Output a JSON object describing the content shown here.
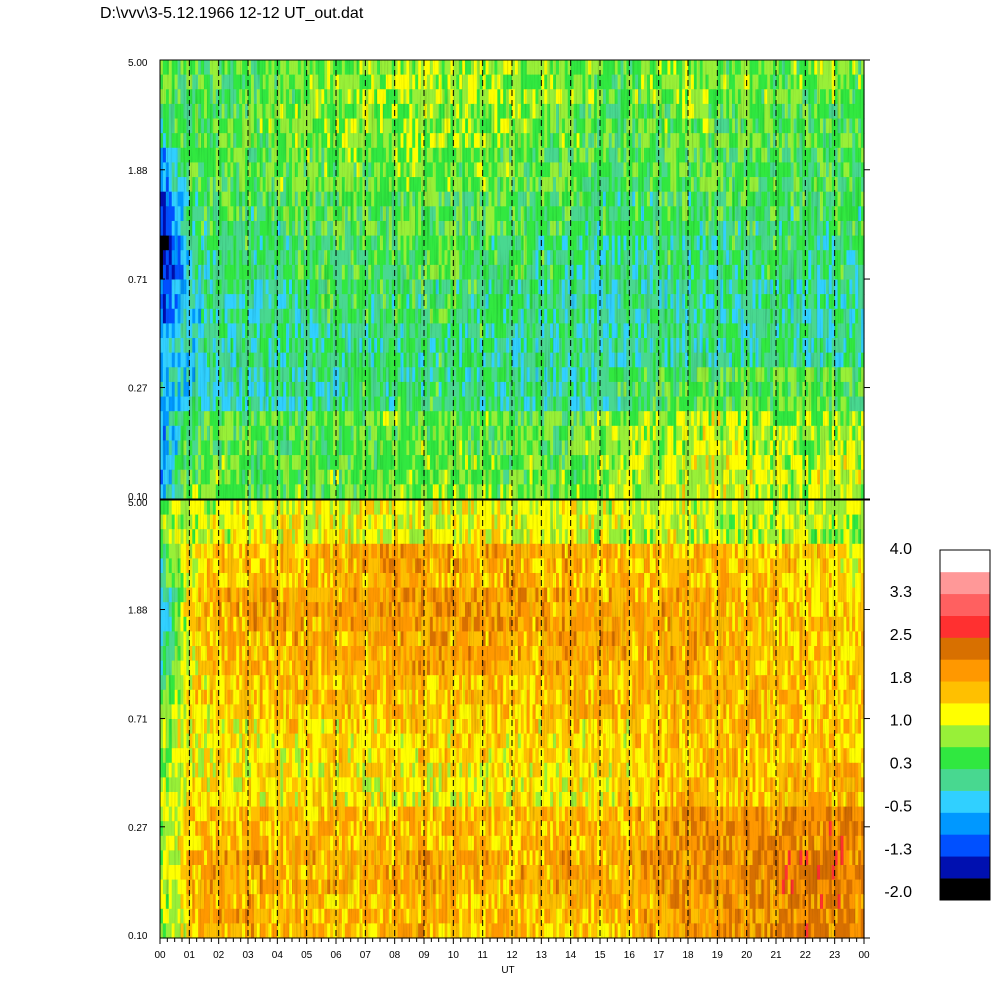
{
  "title": "D:\\vvv\\3-5.12.1966  12-12 UT_out.dat",
  "chart_data": {
    "type": "heatmap",
    "title": "D:\\vvv\\3-5.12.1966  12-12 UT_out.dat",
    "xlabel": "UT",
    "ylabel": "",
    "x_ticks": [
      "00",
      "01",
      "02",
      "03",
      "04",
      "05",
      "06",
      "07",
      "08",
      "09",
      "10",
      "11",
      "12",
      "13",
      "14",
      "15",
      "16",
      "17",
      "18",
      "19",
      "20",
      "21",
      "22",
      "23",
      "00"
    ],
    "xlim": [
      0,
      24
    ],
    "y_scale": "log",
    "y_ticks": [
      "5.00",
      "1.88",
      "0.71",
      "0.27",
      "0.10"
    ],
    "ylim": [
      0.1,
      5.0
    ],
    "grid": "vertical dashed lines at each hour",
    "panels": [
      {
        "name": "upper",
        "levels": [
          [
            0.5,
            0.4,
            0.4,
            0.5,
            0.6,
            0.7,
            0.7,
            0.8,
            0.8,
            0.9,
            0.8,
            0.8,
            0.8,
            0.8,
            0.7,
            0.6,
            0.6,
            0.7,
            0.7,
            0.7,
            0.6,
            0.6,
            0.6,
            0.7,
            0.6
          ],
          [
            0.2,
            0.4,
            0.5,
            0.6,
            0.7,
            0.7,
            0.7,
            0.8,
            0.8,
            0.8,
            0.8,
            0.7,
            0.7,
            0.6,
            0.6,
            0.4,
            0.5,
            0.6,
            0.6,
            0.6,
            0.5,
            0.5,
            0.5,
            0.5,
            0.4
          ],
          [
            -0.8,
            0.4,
            0.5,
            0.5,
            0.6,
            0.6,
            0.6,
            0.6,
            0.7,
            0.7,
            0.7,
            0.6,
            0.6,
            0.5,
            0.5,
            0.3,
            0.4,
            0.4,
            0.5,
            0.5,
            0.4,
            0.4,
            0.4,
            0.4,
            0.4
          ],
          [
            -1.4,
            0.2,
            0.3,
            0.3,
            0.3,
            0.4,
            0.4,
            0.5,
            0.5,
            0.5,
            0.5,
            0.4,
            0.4,
            0.3,
            0.3,
            0.2,
            0.2,
            0.3,
            0.3,
            0.3,
            0.3,
            0.3,
            0.3,
            0.3,
            0.3
          ],
          [
            -1.7,
            -0.1,
            0.2,
            0.2,
            0.2,
            0.3,
            0.3,
            0.4,
            0.4,
            0.4,
            0.4,
            0.3,
            0.3,
            0.2,
            0.2,
            0.0,
            0.1,
            0.2,
            0.2,
            0.2,
            0.2,
            0.2,
            0.2,
            0.2,
            0.2
          ],
          [
            -1.0,
            -0.2,
            0.1,
            0.1,
            0.1,
            0.2,
            0.2,
            0.3,
            0.3,
            0.3,
            0.3,
            0.2,
            0.2,
            0.1,
            0.1,
            0.0,
            0.0,
            0.1,
            0.1,
            0.1,
            0.1,
            0.1,
            0.1,
            0.1,
            0.1
          ],
          [
            -0.5,
            -0.2,
            0.1,
            0.1,
            0.1,
            0.1,
            0.1,
            0.2,
            0.2,
            0.2,
            0.2,
            0.2,
            0.1,
            0.1,
            0.1,
            0.0,
            0.0,
            0.1,
            0.1,
            0.1,
            0.1,
            0.1,
            0.1,
            0.1,
            0.1
          ],
          [
            -0.4,
            -0.1,
            0.0,
            0.0,
            0.1,
            0.1,
            0.1,
            0.2,
            0.2,
            0.2,
            0.2,
            0.1,
            0.1,
            0.1,
            0.0,
            0.1,
            0.3,
            0.4,
            0.5,
            0.5,
            0.6,
            0.5,
            0.5,
            0.5,
            0.4
          ],
          [
            -0.6,
            0.4,
            0.5,
            0.5,
            0.5,
            0.5,
            0.5,
            0.6,
            0.6,
            0.6,
            0.6,
            0.6,
            0.5,
            0.5,
            0.5,
            0.7,
            0.8,
            0.8,
            1.0,
            1.0,
            0.9,
            0.8,
            0.8,
            0.9,
            0.9
          ],
          [
            -0.5,
            0.6,
            0.6,
            0.6,
            0.6,
            0.6,
            0.6,
            0.6,
            0.7,
            0.7,
            0.7,
            0.7,
            0.6,
            0.6,
            0.6,
            0.8,
            0.9,
            0.9,
            1.1,
            1.1,
            1.0,
            0.9,
            0.9,
            1.0,
            1.0
          ]
        ]
      },
      {
        "name": "lower",
        "levels": [
          [
            0.8,
            0.9,
            1.0,
            1.1,
            1.1,
            1.1,
            1.1,
            1.1,
            1.2,
            1.2,
            1.1,
            1.1,
            1.1,
            1.1,
            1.1,
            1.0,
            1.0,
            1.0,
            1.0,
            1.0,
            0.9,
            0.9,
            0.9,
            0.9,
            0.8
          ],
          [
            0.2,
            1.2,
            1.5,
            1.6,
            1.6,
            1.6,
            1.7,
            1.7,
            1.8,
            1.8,
            1.7,
            1.7,
            1.7,
            1.7,
            1.7,
            1.6,
            1.6,
            1.6,
            1.6,
            1.6,
            1.5,
            1.4,
            1.4,
            1.4,
            1.3
          ],
          [
            -0.3,
            1.3,
            1.7,
            1.8,
            1.8,
            1.8,
            1.8,
            1.8,
            1.9,
            1.9,
            1.9,
            1.9,
            1.8,
            1.8,
            1.8,
            1.7,
            1.7,
            1.7,
            1.8,
            1.7,
            1.6,
            1.5,
            1.5,
            1.5,
            1.4
          ],
          [
            0.0,
            1.3,
            1.6,
            1.7,
            1.7,
            1.7,
            1.7,
            1.7,
            1.8,
            1.8,
            1.8,
            1.8,
            1.7,
            1.7,
            1.8,
            1.7,
            1.7,
            1.7,
            1.8,
            1.7,
            1.6,
            1.5,
            1.5,
            1.5,
            1.4
          ],
          [
            0.4,
            1.3,
            1.5,
            1.5,
            1.5,
            1.6,
            1.6,
            1.6,
            1.6,
            1.6,
            1.6,
            1.6,
            1.6,
            1.6,
            1.6,
            1.6,
            1.6,
            1.6,
            1.7,
            1.7,
            1.6,
            1.5,
            1.5,
            1.5,
            1.5
          ],
          [
            0.7,
            1.2,
            1.3,
            1.3,
            1.3,
            1.4,
            1.4,
            1.4,
            1.4,
            1.4,
            1.4,
            1.4,
            1.4,
            1.4,
            1.4,
            1.4,
            1.4,
            1.5,
            1.6,
            1.6,
            1.5,
            1.5,
            1.5,
            1.5,
            1.5
          ],
          [
            0.8,
            1.2,
            1.3,
            1.3,
            1.3,
            1.3,
            1.3,
            1.3,
            1.3,
            1.3,
            1.3,
            1.3,
            1.3,
            1.3,
            1.3,
            1.3,
            1.4,
            1.5,
            1.6,
            1.6,
            1.6,
            1.6,
            1.6,
            1.6,
            1.6
          ],
          [
            0.9,
            1.4,
            1.6,
            1.6,
            1.6,
            1.6,
            1.6,
            1.6,
            1.6,
            1.6,
            1.6,
            1.6,
            1.6,
            1.6,
            1.6,
            1.6,
            1.7,
            1.8,
            1.9,
            1.9,
            2.0,
            2.0,
            2.1,
            2.1,
            2.0
          ],
          [
            0.8,
            1.6,
            1.8,
            1.8,
            1.7,
            1.7,
            1.7,
            1.7,
            1.8,
            1.8,
            1.7,
            1.7,
            1.7,
            1.7,
            1.7,
            1.7,
            1.8,
            1.9,
            2.0,
            2.0,
            2.1,
            2.1,
            2.2,
            2.2,
            2.1
          ],
          [
            0.7,
            1.5,
            1.7,
            1.7,
            1.6,
            1.6,
            1.6,
            1.6,
            1.7,
            1.7,
            1.6,
            1.6,
            1.6,
            1.6,
            1.6,
            1.6,
            1.7,
            1.8,
            1.9,
            1.9,
            2.0,
            2.0,
            2.1,
            2.1,
            2.0
          ]
        ]
      }
    ],
    "colorbar": {
      "labels": [
        "4.0",
        "3.3",
        "2.5",
        "1.8",
        "1.0",
        "0.3",
        "-0.5",
        "-1.3",
        "-2.0"
      ],
      "range": [
        -2.0,
        4.0
      ],
      "colors": [
        "#000000",
        "#0010b0",
        "#0050ff",
        "#0098ff",
        "#30d0ff",
        "#48d890",
        "#30e840",
        "#98f038",
        "#ffff00",
        "#ffc000",
        "#ff9800",
        "#d87000",
        "#ff3030",
        "#ff6060",
        "#ff9898",
        "#ffffff"
      ]
    }
  }
}
